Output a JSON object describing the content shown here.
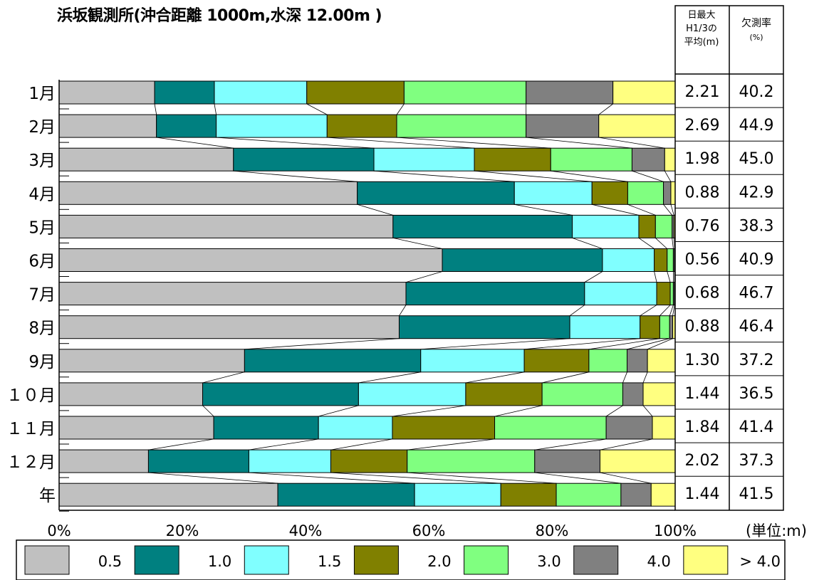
{
  "title": "浜坂観測所(沖合距離 1000m,水深 12.00m )",
  "table_headers": {
    "mean_lines": [
      "日最大",
      "H1/3の",
      "平均(m)"
    ],
    "missing_lines": [
      "欠測率",
      "(%)"
    ]
  },
  "unit_label": "(単位:m)",
  "colors": {
    "0.5": "#c0c0c0",
    "1.0": "#008080",
    "1.5": "#80ffff",
    "2.0": "#808000",
    "3.0": "#80ff80",
    "4.0": "#808080",
    "> 4.0": "#ffff80"
  },
  "chart_data": {
    "type": "bar",
    "orientation": "horizontal",
    "stacked": "percent",
    "title": "浜坂観測所(沖合距離 1000m,水深 12.00m )",
    "categories": [
      "1月",
      "2月",
      "3月",
      "4月",
      "5月",
      "6月",
      "7月",
      "8月",
      "9月",
      "10月",
      "11月",
      "12月",
      "年"
    ],
    "category_labels": [
      "1月",
      "2月",
      "3月",
      "4月",
      "5月",
      "6月",
      "7月",
      "8月",
      "9月",
      "１０月",
      "１１月",
      "１２月",
      "年"
    ],
    "xlim": [
      0,
      100
    ],
    "xticks": [
      "0%",
      "20%",
      "40%",
      "60%",
      "80%",
      "100%"
    ],
    "legend_position": "bottom",
    "series": [
      {
        "name": "0.5",
        "color": "#c0c0c0",
        "values": [
          15.5,
          15.8,
          28.3,
          48.4,
          54.2,
          62.2,
          56.3,
          55.2,
          30.1,
          23.3,
          25.1,
          14.5,
          35.5
        ]
      },
      {
        "name": "1.0",
        "color": "#008080",
        "values": [
          9.7,
          9.7,
          22.8,
          25.5,
          29.1,
          26.0,
          29.0,
          27.7,
          28.6,
          25.3,
          17.0,
          16.3,
          22.2
        ]
      },
      {
        "name": "1.5",
        "color": "#80ffff",
        "values": [
          15.0,
          18.0,
          16.3,
          12.6,
          10.8,
          8.4,
          11.7,
          11.4,
          16.8,
          17.4,
          12.0,
          13.3,
          14.0
        ]
      },
      {
        "name": "2.0",
        "color": "#808000",
        "values": [
          15.8,
          11.3,
          12.4,
          5.8,
          2.7,
          2.1,
          2.2,
          3.2,
          10.5,
          12.4,
          16.6,
          12.4,
          9.0
        ]
      },
      {
        "name": "3.0",
        "color": "#80ff80",
        "values": [
          19.8,
          21.0,
          13.2,
          5.8,
          2.7,
          1.0,
          0.5,
          1.6,
          6.2,
          13.1,
          18.1,
          20.7,
          10.5
        ]
      },
      {
        "name": "4.0",
        "color": "#808080",
        "values": [
          14.1,
          11.8,
          5.3,
          1.2,
          0.3,
          0.2,
          0.2,
          0.5,
          3.3,
          3.3,
          7.5,
          10.6,
          4.9
        ]
      },
      {
        "name": "> 4.0",
        "color": "#ffff80",
        "values": [
          10.1,
          12.4,
          1.7,
          0.7,
          0.2,
          0.1,
          0.1,
          0.4,
          4.5,
          5.2,
          3.7,
          12.2,
          3.9
        ]
      }
    ],
    "table": {
      "mean_h13": [
        "2.21",
        "2.69",
        "1.98",
        "0.88",
        "0.76",
        "0.56",
        "0.68",
        "0.88",
        "1.30",
        "1.44",
        "1.84",
        "2.02",
        "1.44"
      ],
      "missing_rate": [
        "40.2",
        "44.9",
        "45.0",
        "42.9",
        "38.3",
        "40.9",
        "46.7",
        "46.4",
        "37.2",
        "36.5",
        "41.4",
        "37.3",
        "41.5"
      ]
    }
  }
}
